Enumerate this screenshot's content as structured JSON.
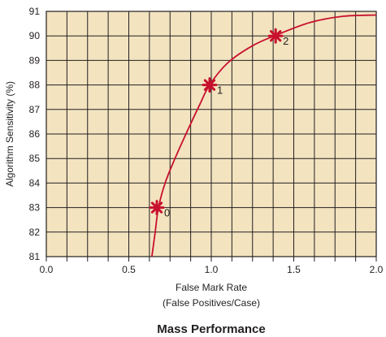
{
  "chart_data": {
    "type": "line",
    "title": "Mass Performance",
    "xlabel": "False Mark Rate",
    "xlabel_sub": "(False Positives/Case)",
    "ylabel": "Algorithm Sensitivity (%)",
    "xlim": [
      0.0,
      2.0
    ],
    "ylim": [
      81,
      91
    ],
    "x_ticks": [
      "0.0",
      "0.5",
      "1.0",
      "1.5",
      "2.0"
    ],
    "x_tick_values": [
      0.0,
      0.5,
      1.0,
      1.5,
      2.0
    ],
    "y_ticks": [
      "81",
      "82",
      "83",
      "84",
      "85",
      "86",
      "87",
      "88",
      "89",
      "90",
      "91"
    ],
    "y_tick_values": [
      81,
      82,
      83,
      84,
      85,
      86,
      87,
      88,
      89,
      90,
      91
    ],
    "grid": true,
    "x_grid_step": 0.125,
    "series": [
      {
        "x": [
          0.64,
          0.66,
          0.68,
          0.72,
          0.78,
          0.86,
          0.93,
          0.99,
          1.1,
          1.25,
          1.4,
          1.6,
          1.8,
          2.0
        ],
        "values": [
          81.0,
          82.0,
          83.0,
          84.0,
          85.0,
          86.2,
          87.2,
          88.0,
          88.9,
          89.6,
          90.05,
          90.55,
          90.8,
          90.85
        ]
      }
    ],
    "operating_points": [
      {
        "label": "0",
        "x": 0.67,
        "y": 83.0
      },
      {
        "label": "1",
        "x": 0.99,
        "y": 88.0
      },
      {
        "label": "2",
        "x": 1.39,
        "y": 90.0
      }
    ],
    "colors": {
      "plot_background": "#f3e3bf",
      "grid": "#231f20",
      "curve": "#c8102e",
      "marker": "#c8102e",
      "text": "#231f20"
    }
  }
}
